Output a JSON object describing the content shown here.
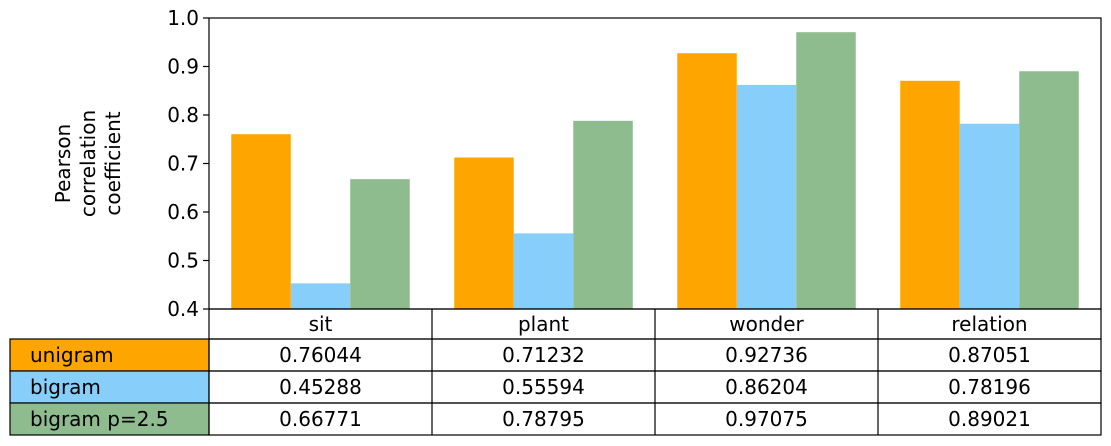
{
  "chart_data": {
    "type": "bar",
    "categories": [
      "sit",
      "plant",
      "wonder",
      "relation"
    ],
    "series": [
      {
        "name": "unigram",
        "color": "#FFA500",
        "values": [
          0.76044,
          0.71232,
          0.92736,
          0.87051
        ]
      },
      {
        "name": "bigram",
        "color": "#87CEFA",
        "values": [
          0.45288,
          0.55594,
          0.86204,
          0.78196
        ]
      },
      {
        "name": "bigram p=2.5",
        "color": "#8FBC8F",
        "values": [
          0.66771,
          0.78795,
          0.97075,
          0.89021
        ]
      }
    ],
    "title": "",
    "xlabel": "",
    "ylabel_lines": [
      "Pearson",
      "correlation",
      "coefficient"
    ],
    "ylim": [
      0.4,
      1.0
    ],
    "yticks": [
      "0.4",
      "0.5",
      "0.6",
      "0.7",
      "0.8",
      "0.9",
      "1.0"
    ],
    "table": {
      "rows": [
        {
          "label": "unigram",
          "cells": [
            "0.76044",
            "0.71232",
            "0.92736",
            "0.87051"
          ]
        },
        {
          "label": "bigram",
          "cells": [
            "0.45288",
            "0.55594",
            "0.86204",
            "0.78196"
          ]
        },
        {
          "label": "bigram p=2.5",
          "cells": [
            "0.66771",
            "0.78795",
            "0.97075",
            "0.89021"
          ]
        }
      ]
    },
    "grid": false,
    "legend": "table-rows"
  }
}
